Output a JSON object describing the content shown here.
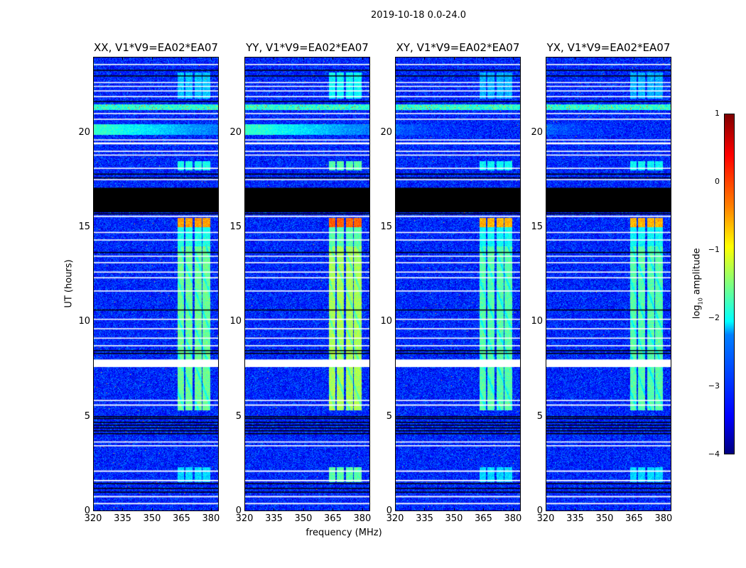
{
  "chart_data": {
    "type": "heatmap",
    "title": "2019-10-18 0.0-24.0",
    "xlabel": "frequency (MHz)",
    "ylabel": "UT (hours)",
    "xlim": [
      320,
      384
    ],
    "ylim": [
      0,
      24
    ],
    "xticks": [
      320,
      335,
      350,
      365,
      380
    ],
    "yticks": [
      0,
      5,
      10,
      15,
      20
    ],
    "colormap": "jet",
    "colorbar": {
      "label_main": "log",
      "label_sub": "10",
      "label_rest": " amplitude",
      "range": [
        -4,
        1
      ],
      "ticks": [
        "1",
        "0",
        "−1",
        "−2",
        "−3",
        "−4"
      ],
      "tick_values": [
        1,
        0,
        -1,
        -2,
        -3,
        -4
      ]
    },
    "background_level": -3.2,
    "panels": [
      {
        "title": "XX, V1*V9=EA02*EA07",
        "row_band": -1.8,
        "low_band": -2.3,
        "rfi_gain": 0
      },
      {
        "title": "YY, V1*V9=EA02*EA07",
        "row_band": -1.8,
        "low_band": -1.7,
        "rfi_gain": 0.3
      },
      {
        "title": "XY, V1*V9=EA02*EA07",
        "row_band": -2.9,
        "low_band": -2.3,
        "rfi_gain": -0.1
      },
      {
        "title": "YX, V1*V9=EA02*EA07",
        "row_band": -2.9,
        "low_band": -2.3,
        "rfi_gain": -0.1
      }
    ],
    "rfi_subbands_mhz": [
      [
        363,
        366.5
      ],
      [
        367,
        371
      ],
      [
        372,
        375.5
      ],
      [
        376,
        380
      ]
    ],
    "rfi_time_blocks": [
      {
        "t": [
          5.3,
          14.0
        ],
        "level": -1.6
      },
      {
        "t": [
          14.0,
          15.0
        ],
        "level": -2.0
      },
      {
        "t": [
          15.0,
          15.5
        ],
        "level": -0.4
      },
      {
        "t": [
          18.0,
          18.5
        ],
        "level": -2.0
      },
      {
        "t": [
          21.8,
          23.2
        ],
        "level": -2.4
      }
    ],
    "rfi_row": {
      "t": [
        21.2,
        21.5
      ],
      "level": -1.9
    },
    "flagged_white_hours": [
      [
        0.33,
        0.4
      ],
      [
        0.7,
        0.77
      ],
      [
        1.55,
        1.62
      ],
      [
        2.05,
        2.12
      ],
      [
        3.4,
        3.46
      ],
      [
        3.6,
        3.66
      ],
      [
        5.55,
        5.62
      ],
      [
        5.8,
        5.86
      ],
      [
        7.6,
        8.0
      ],
      [
        8.7,
        8.76
      ],
      [
        9.1,
        9.16
      ],
      [
        9.6,
        9.66
      ],
      [
        10.1,
        10.16
      ],
      [
        11.6,
        11.66
      ],
      [
        12.3,
        12.36
      ],
      [
        12.6,
        12.66
      ],
      [
        13.1,
        13.16
      ],
      [
        13.45,
        13.5
      ],
      [
        14.3,
        14.36
      ],
      [
        14.7,
        14.76
      ],
      [
        15.55,
        15.62
      ],
      [
        17.5,
        17.56
      ],
      [
        18.1,
        18.16
      ],
      [
        18.8,
        18.86
      ],
      [
        19.0,
        19.06
      ],
      [
        19.4,
        19.5
      ],
      [
        19.6,
        19.66
      ],
      [
        20.7,
        20.76
      ],
      [
        21.0,
        21.06
      ],
      [
        21.9,
        21.96
      ],
      [
        22.2,
        22.26
      ],
      [
        22.45,
        22.5
      ],
      [
        22.65,
        22.7
      ],
      [
        23.6,
        23.66
      ]
    ],
    "no_data_black_hours": [
      [
        0.95,
        1.0
      ],
      [
        1.15,
        1.2
      ],
      [
        1.4,
        1.45
      ],
      [
        4.05,
        4.1
      ],
      [
        4.2,
        4.25
      ],
      [
        4.35,
        4.4
      ],
      [
        4.5,
        4.55
      ],
      [
        4.65,
        4.7
      ],
      [
        4.85,
        4.9
      ],
      [
        4.95,
        5.0
      ],
      [
        8.3,
        8.35
      ],
      [
        8.45,
        8.5
      ],
      [
        10.6,
        10.65
      ],
      [
        13.65,
        13.7
      ],
      [
        15.7,
        15.75
      ],
      [
        15.8,
        17.1
      ],
      [
        17.6,
        17.65
      ],
      [
        17.8,
        17.85
      ],
      [
        21.65,
        21.7
      ],
      [
        23.0,
        23.05
      ],
      [
        23.3,
        23.35
      ]
    ]
  }
}
